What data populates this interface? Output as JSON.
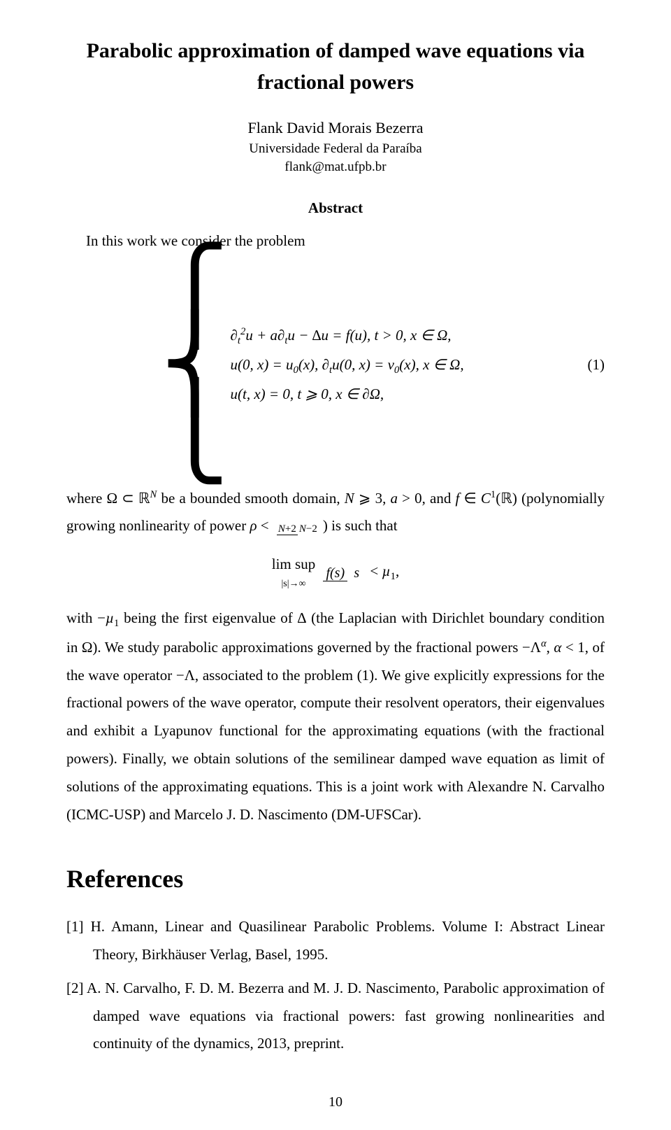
{
  "title": "Parabolic approximation of damped wave equations via fractional powers",
  "author": "Flank David Morais Bezerra",
  "affiliation": "Universidade Federal da Paraíba",
  "email": "flank@mat.ufpb.br",
  "abstract_heading": "Abstract",
  "intro": "In this work we consider the problem",
  "eq1_line1_html": "∂<span class='sub'>t</span><span class='sup'>2</span>u + a∂<span class='sub'>t</span>u − ∆u = f(u), t > 0, x ∈ Ω,",
  "eq1_line2_html": "u(0, x) = u<span class='sub'>0</span>(x), ∂<span class='sub'>t</span>u(0, x) = v<span class='sub'>0</span>(x), x ∈ Ω,",
  "eq1_line3_html": "u(t, x) = 0, t ⩾ 0, x ∈ ∂Ω,",
  "eq1_number": "(1)",
  "body_part1_html": "where Ω ⊂ ℝ<span class='sup'><i>N</i></span> be a bounded smooth domain, <i>N</i> ⩾ 3, <i>a</i> > 0, and <i>f</i> ∈ <i>C</i><span class='sup'>1</span>(ℝ) (polynomially growing nonlinearity of power <i>ρ</i> < <span class='frac frac-small'><span class='frac-top'><i>N</i>+2</span><span class='frac-bottom'><i>N</i>−2</span></span>) is such that",
  "limsup_top": "lim sup",
  "limsup_bottom": "|s|→∞",
  "limsup_frac_top": "f(s)",
  "limsup_frac_bottom": "s",
  "limsup_rhs_html": " < <i>µ</i><span class='sub'>1</span>,",
  "body_part2_html": "with −<i>µ</i><span class='sub'>1</span> being the first eigenvalue of ∆ (the Laplacian with Dirichlet boundary condition in Ω). We study parabolic approximations governed by the fractional powers −Λ<span class='sup'><i>α</i></span>, <i>α</i> < 1, of the wave operator −Λ, associated to the problem (1). We give explicitly expressions for the fractional powers of the wave operator, compute their resolvent operators, their eigenvalues and exhibit a Lyapunov functional for the approximating equations (with the fractional powers). Finally, we obtain solutions of the semilinear damped wave equation as limit of solutions of the approximating equations. This is a joint work with Alexandre N. Carvalho (ICMC-USP) and Marcelo J. D. Nascimento (DM-UFSCar).",
  "references_heading": "References",
  "ref1": "[1] H. Amann, Linear and Quasilinear Parabolic Problems. Volume I: Abstract Linear Theory, Birkhäuser Verlag, Basel, 1995.",
  "ref2": "[2] A. N. Carvalho, F. D. M. Bezerra and M. J. D. Nascimento, Parabolic approximation of damped wave equations via fractional powers: fast growing nonlinearities and continuity of the dynamics, 2013, preprint.",
  "page_number": "10",
  "colors": {
    "background": "#ffffff",
    "text": "#000000"
  },
  "typography": {
    "title_fontsize": 30,
    "author_fontsize": 22,
    "body_fontsize": 21,
    "references_heading_fontsize": 36,
    "font_family": "Times New Roman"
  }
}
